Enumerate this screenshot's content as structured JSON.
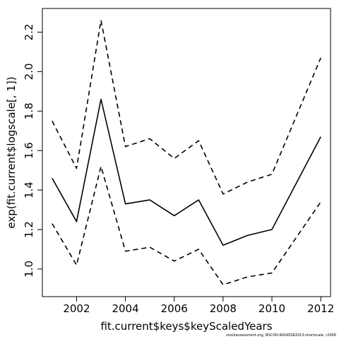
{
  "chart_data": {
    "type": "line",
    "xlabel": "fit.current$keys$keyScaledYears",
    "ylabel": "exp(fit.current$logscale[, 1])",
    "xlim": [
      2000.6,
      2012.4
    ],
    "ylim": [
      0.86,
      2.32
    ],
    "x_ticks": [
      2002,
      2004,
      2006,
      2008,
      2010,
      2012
    ],
    "y_ticks": [
      1.0,
      1.2,
      1.4,
      1.6,
      1.8,
      2.0,
      2.2
    ],
    "x": [
      2001,
      2002,
      2003,
      2004,
      2005,
      2006,
      2007,
      2008,
      2009,
      2010,
      2012
    ],
    "series": [
      {
        "style": "solid",
        "values": [
          1.46,
          1.24,
          1.86,
          1.33,
          1.35,
          1.27,
          1.35,
          1.12,
          1.17,
          1.2,
          1.67
        ]
      },
      {
        "style": "dashed",
        "values": [
          1.75,
          1.51,
          2.26,
          1.62,
          1.66,
          1.56,
          1.65,
          1.38,
          1.44,
          1.48,
          2.07
        ]
      },
      {
        "style": "dashed",
        "values": [
          1.23,
          1.02,
          1.52,
          1.09,
          1.11,
          1.04,
          1.1,
          0.92,
          0.96,
          0.98,
          1.34
        ]
      }
    ],
    "grid": false,
    "legend": "none"
  },
  "footer": "stockassessment.org, NSCOD-WGNSSK2013-shortscale, r2456"
}
